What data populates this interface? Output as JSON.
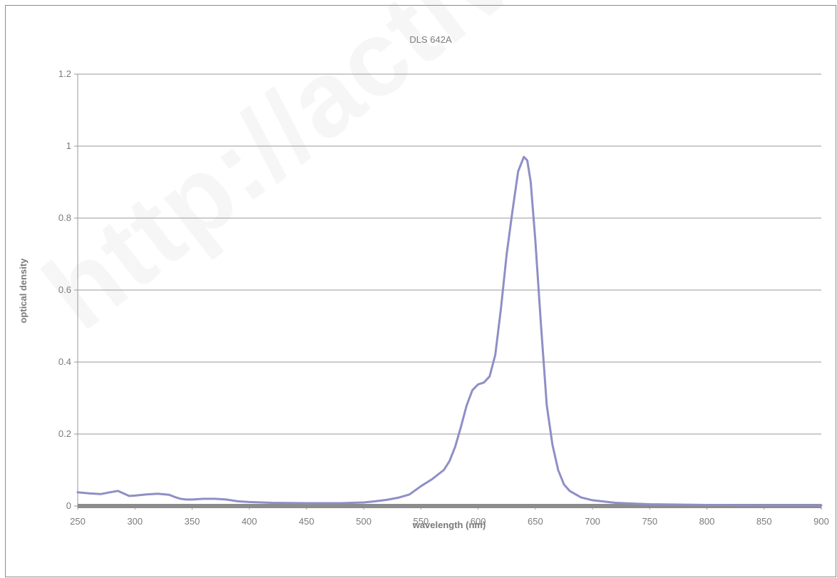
{
  "chart_data": {
    "type": "line",
    "title": "DLS 642A",
    "xlabel": "wavelength (nm)",
    "ylabel": "optical density",
    "xlim": [
      250,
      900
    ],
    "ylim": [
      0,
      1.2
    ],
    "x_ticks": [
      250,
      300,
      350,
      400,
      450,
      500,
      550,
      600,
      650,
      700,
      750,
      800,
      850,
      900
    ],
    "y_ticks": [
      0,
      0.2,
      0.4,
      0.6,
      0.8,
      1,
      1.2
    ],
    "y_tick_labels": [
      "0",
      "0.2",
      "0.4",
      "0.6",
      "0.8",
      "1",
      "1.2"
    ],
    "grid": "horizontal",
    "legend": "none",
    "series": [
      {
        "color": "#8e8fc6",
        "x": [
          250,
          260,
          270,
          278,
          285,
          290,
          295,
          300,
          310,
          320,
          330,
          335,
          340,
          345,
          350,
          360,
          370,
          380,
          390,
          400,
          420,
          450,
          480,
          500,
          510,
          520,
          530,
          540,
          550,
          560,
          570,
          575,
          580,
          585,
          590,
          595,
          600,
          605,
          610,
          615,
          620,
          625,
          630,
          635,
          640,
          643,
          646,
          650,
          655,
          660,
          665,
          670,
          675,
          680,
          690,
          700,
          720,
          750,
          800,
          850,
          900
        ],
        "y": [
          0.038,
          0.035,
          0.033,
          0.038,
          0.042,
          0.035,
          0.028,
          0.029,
          0.032,
          0.034,
          0.031,
          0.025,
          0.02,
          0.018,
          0.018,
          0.02,
          0.02,
          0.018,
          0.013,
          0.011,
          0.009,
          0.008,
          0.008,
          0.01,
          0.013,
          0.017,
          0.023,
          0.032,
          0.055,
          0.075,
          0.1,
          0.125,
          0.165,
          0.22,
          0.28,
          0.322,
          0.338,
          0.343,
          0.36,
          0.42,
          0.55,
          0.7,
          0.82,
          0.93,
          0.97,
          0.96,
          0.9,
          0.74,
          0.5,
          0.28,
          0.17,
          0.1,
          0.06,
          0.042,
          0.024,
          0.016,
          0.009,
          0.005,
          0.003,
          0.002,
          0.002
        ]
      }
    ]
  },
  "watermark": "http://activeray-sci.com"
}
